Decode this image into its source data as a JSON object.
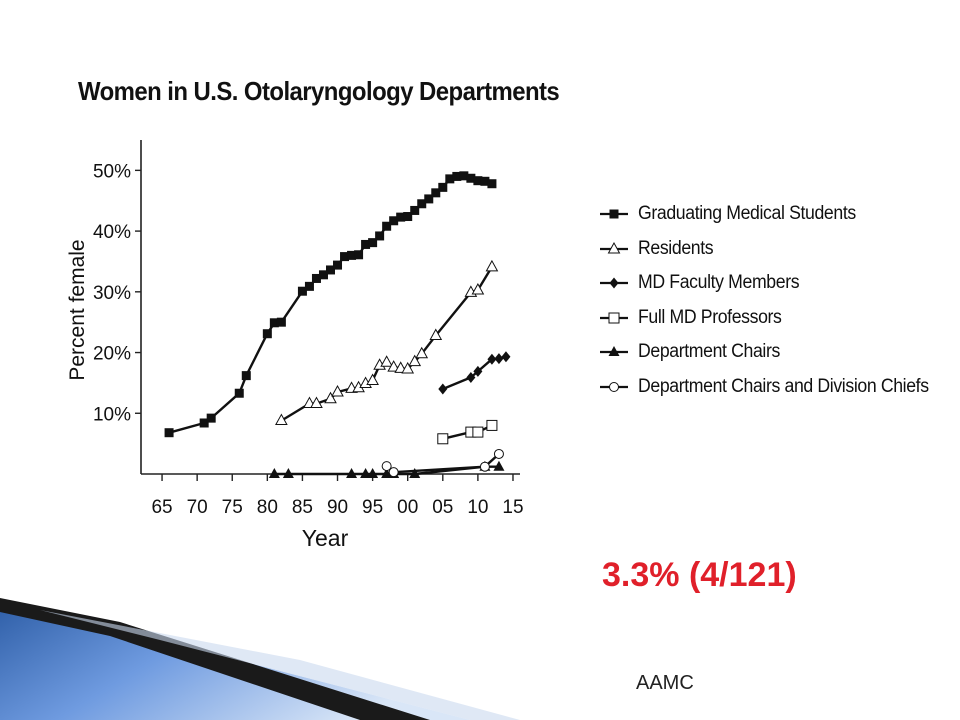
{
  "slide": {
    "title": "Women in U.S. Otolaryngology Departments",
    "highlight": "3.3% (4/121)",
    "source": "AAMC"
  },
  "chart_data": {
    "type": "line",
    "title": "Women in U.S. Otolaryngology Departments",
    "xlabel": "Year",
    "ylabel": "Percent female",
    "xlim": [
      1962,
      2016
    ],
    "ylim": [
      0,
      55
    ],
    "x_ticks": [
      1965,
      1970,
      1975,
      1980,
      1985,
      1990,
      1995,
      2000,
      2005,
      2010,
      2015
    ],
    "x_tick_labels": [
      "65",
      "70",
      "75",
      "80",
      "85",
      "90",
      "95",
      "00",
      "05",
      "10",
      "15"
    ],
    "y_ticks": [
      10,
      20,
      30,
      40,
      50
    ],
    "y_tick_labels": [
      "10%",
      "20%",
      "30%",
      "40%",
      "50%"
    ],
    "grid": false,
    "legend_position": "right",
    "series": [
      {
        "name": "Graduating Medical Students",
        "marker": "filled-square",
        "x": [
          1966,
          1971,
          1972,
          1976,
          1977,
          1980,
          1981,
          1982,
          1985,
          1986,
          1987,
          1988,
          1989,
          1990,
          1991,
          1992,
          1993,
          1994,
          1995,
          1996,
          1997,
          1998,
          1999,
          2000,
          2001,
          2002,
          2003,
          2004,
          2005,
          2006,
          2007,
          2008,
          2009,
          2010,
          2011,
          2012
        ],
        "y": [
          6.8,
          8.4,
          9.2,
          13.3,
          16.2,
          23.1,
          24.9,
          25.0,
          30.1,
          30.9,
          32.2,
          32.8,
          33.6,
          34.4,
          35.8,
          36.0,
          36.1,
          37.8,
          38.1,
          39.2,
          40.8,
          41.7,
          42.3,
          42.4,
          43.4,
          44.5,
          45.3,
          46.3,
          47.2,
          48.6,
          49.0,
          49.1,
          48.7,
          48.3,
          48.2,
          47.8
        ]
      },
      {
        "name": "Residents",
        "marker": "open-triangle",
        "x": [
          1982,
          1986,
          1987,
          1989,
          1990,
          1992,
          1993,
          1994,
          1995,
          1996,
          1997,
          1998,
          1999,
          2000,
          2001,
          2002,
          2004,
          2009,
          2010,
          2012
        ],
        "y": [
          8.8,
          11.6,
          11.6,
          12.4,
          13.5,
          14.1,
          14.2,
          14.9,
          15.4,
          17.9,
          18.4,
          17.6,
          17.4,
          17.3,
          18.5,
          19.8,
          22.8,
          29.9,
          30.3,
          34.1
        ]
      },
      {
        "name": "MD Faculty Members",
        "marker": "filled-diamond",
        "x": [
          2005,
          2009,
          2010,
          2012,
          2013,
          2014
        ],
        "y": [
          14.0,
          15.9,
          16.9,
          18.9,
          19.0,
          19.3
        ]
      },
      {
        "name": "Full MD Professors",
        "marker": "open-square",
        "x": [
          2005,
          2009,
          2010,
          2012
        ],
        "y": [
          5.8,
          6.9,
          6.9,
          8.0
        ]
      },
      {
        "name": "Department Chairs",
        "marker": "filled-triangle",
        "x": [
          1981,
          1983,
          1992,
          1994,
          1995,
          1997,
          1998,
          2001,
          2011,
          2013
        ],
        "y": [
          0,
          0,
          0,
          0,
          0,
          0,
          0,
          0,
          1.2,
          1.2
        ]
      },
      {
        "name": "Department Chairs and Division Chiefs",
        "marker": "open-circle",
        "x": [
          1997,
          1998,
          2011,
          2013
        ],
        "y": [
          1.3,
          0.3,
          1.2,
          3.3
        ]
      }
    ]
  }
}
